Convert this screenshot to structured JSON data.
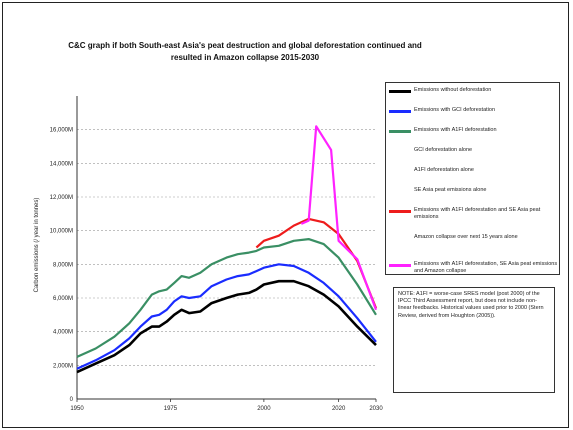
{
  "chart_data": {
    "type": "line",
    "title": "C&C graph if both South-east Asia's peat destruction and global deforestation continued and resulted in Amazon collapse 2015-2030",
    "ylabel": "Carbon emissions (/ year in tonnes)",
    "xlabel": "",
    "xlim": [
      1950,
      2030
    ],
    "ylim": [
      0,
      18000
    ],
    "x_ticks": [
      1950,
      1975,
      2000,
      2020,
      2030
    ],
    "y_ticks": [
      {
        "value": 0,
        "label": "0"
      },
      {
        "value": 2000,
        "label": "2,000M"
      },
      {
        "value": 4000,
        "label": "4,000M"
      },
      {
        "value": 6000,
        "label": "6,000M"
      },
      {
        "value": 8000,
        "label": "8,000M"
      },
      {
        "value": 10000,
        "label": "10,000M"
      },
      {
        "value": 12000,
        "label": "12,000M"
      },
      {
        "value": 14000,
        "label": "14,000M"
      },
      {
        "value": 16000,
        "label": "16,000M"
      }
    ],
    "grid": "horizontal dashed",
    "legend_position": "right",
    "series": [
      {
        "name": "Emissions without deforestation",
        "color": "#000000",
        "points": [
          [
            1950,
            1600
          ],
          [
            1955,
            2100
          ],
          [
            1960,
            2600
          ],
          [
            1964,
            3200
          ],
          [
            1967,
            3900
          ],
          [
            1970,
            4300
          ],
          [
            1972,
            4300
          ],
          [
            1974,
            4600
          ],
          [
            1976,
            5000
          ],
          [
            1978,
            5300
          ],
          [
            1980,
            5100
          ],
          [
            1983,
            5200
          ],
          [
            1986,
            5700
          ],
          [
            1990,
            6000
          ],
          [
            1993,
            6200
          ],
          [
            1996,
            6300
          ],
          [
            1998,
            6500
          ],
          [
            2000,
            6800
          ],
          [
            2004,
            7000
          ],
          [
            2008,
            7000
          ],
          [
            2012,
            6700
          ],
          [
            2016,
            6200
          ],
          [
            2020,
            5500
          ],
          [
            2025,
            4300
          ],
          [
            2030,
            3200
          ]
        ]
      },
      {
        "name": "Emissions with GCI deforestation",
        "color": "#1a2cff",
        "points": [
          [
            1950,
            1800
          ],
          [
            1955,
            2300
          ],
          [
            1960,
            2900
          ],
          [
            1964,
            3600
          ],
          [
            1967,
            4300
          ],
          [
            1970,
            4900
          ],
          [
            1972,
            5000
          ],
          [
            1974,
            5300
          ],
          [
            1976,
            5800
          ],
          [
            1978,
            6100
          ],
          [
            1980,
            6000
          ],
          [
            1983,
            6100
          ],
          [
            1986,
            6700
          ],
          [
            1990,
            7100
          ],
          [
            1993,
            7300
          ],
          [
            1996,
            7400
          ],
          [
            1998,
            7600
          ],
          [
            2000,
            7800
          ],
          [
            2004,
            8000
          ],
          [
            2008,
            7900
          ],
          [
            2012,
            7500
          ],
          [
            2016,
            6900
          ],
          [
            2020,
            6100
          ],
          [
            2025,
            4800
          ],
          [
            2030,
            3400
          ]
        ]
      },
      {
        "name": "Emissions with A1FI deforestation",
        "color": "#3a8f64",
        "points": [
          [
            1950,
            2500
          ],
          [
            1955,
            3000
          ],
          [
            1960,
            3700
          ],
          [
            1964,
            4500
          ],
          [
            1967,
            5300
          ],
          [
            1970,
            6200
          ],
          [
            1972,
            6400
          ],
          [
            1974,
            6500
          ],
          [
            1976,
            6900
          ],
          [
            1978,
            7300
          ],
          [
            1980,
            7200
          ],
          [
            1983,
            7500
          ],
          [
            1986,
            8000
          ],
          [
            1990,
            8400
          ],
          [
            1993,
            8600
          ],
          [
            1996,
            8700
          ],
          [
            1998,
            8800
          ],
          [
            2000,
            9000
          ],
          [
            2004,
            9100
          ],
          [
            2008,
            9400
          ],
          [
            2012,
            9500
          ],
          [
            2016,
            9200
          ],
          [
            2020,
            8400
          ],
          [
            2025,
            6800
          ],
          [
            2030,
            5000
          ]
        ]
      },
      {
        "name": "Emissions with A1FI deforestation and SE Asia peat emissions",
        "color": "#ee1c1c",
        "points": [
          [
            1998,
            9000
          ],
          [
            2000,
            9400
          ],
          [
            2004,
            9700
          ],
          [
            2008,
            10300
          ],
          [
            2012,
            10700
          ],
          [
            2016,
            10500
          ],
          [
            2020,
            9800
          ],
          [
            2025,
            8200
          ],
          [
            2030,
            5400
          ]
        ]
      },
      {
        "name": "Emissions with A1FI deforestation, SE Asia peat emissions and Amazon collapse",
        "color": "#ff22ff",
        "points": [
          [
            2010,
            10400
          ],
          [
            2012,
            10600
          ],
          [
            2014,
            16200
          ],
          [
            2018,
            14800
          ],
          [
            2020,
            9400
          ],
          [
            2025,
            8300
          ],
          [
            2030,
            5300
          ]
        ]
      }
    ],
    "legend": [
      {
        "label": "Emissions without deforestation",
        "color": "#000000",
        "swatch": true
      },
      {
        "label": "Emissions with GCI deforestation",
        "color": "#1a2cff",
        "swatch": true
      },
      {
        "label": "Emissions with A1FI deforestation",
        "color": "#3a8f64",
        "swatch": true
      },
      {
        "label": "GCI deforestation alone",
        "color": "",
        "swatch": false
      },
      {
        "label": "A1FI deforestation alone",
        "color": "",
        "swatch": false
      },
      {
        "label": "SE Asia peat emissions alone",
        "color": "",
        "swatch": false
      },
      {
        "label": "Emissions with A1FI deforestation and SE Asia peat emissions",
        "color": "#ee1c1c",
        "swatch": true
      },
      {
        "label": "Amazon collapse over next 15 years alone",
        "color": "",
        "swatch": false
      },
      {
        "label": "Emissions with A1FI deforestation, SE Asia peat emissions and Amazon collapse",
        "color": "#ff22ff",
        "swatch": true
      }
    ],
    "note": "NOTE: A1FI = worse-case SRES model (post 2000) of the IPCC Third Assessment report, but does not include non-linear feedbacks. Historical values used prior to 2000 (Stern Review, derived from Houghton (2005))."
  }
}
